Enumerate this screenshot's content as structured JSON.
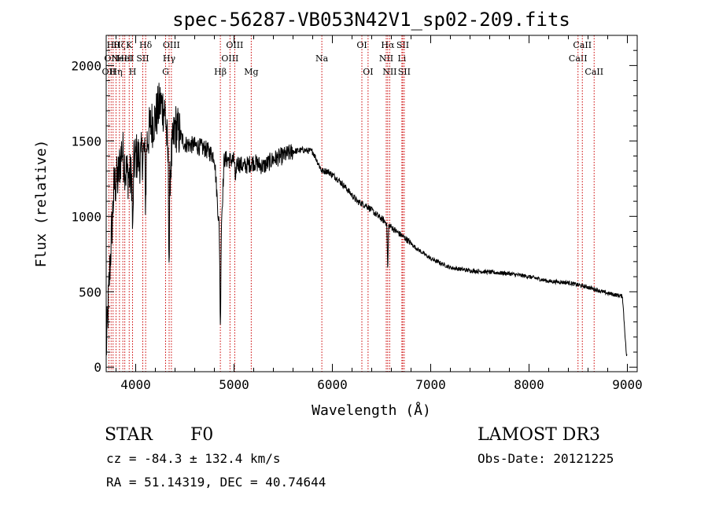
{
  "chart_data": {
    "type": "line",
    "title": "spec-56287-VB053N42V1_sp02-209.fits",
    "xlabel": "Wavelength (Å)",
    "ylabel": "Flux (relative)",
    "xlim": [
      3700,
      9100
    ],
    "ylim": [
      -30,
      2200
    ],
    "x_ticks": [
      4000,
      5000,
      6000,
      7000,
      8000,
      9000
    ],
    "x_tick_labels": [
      "4000",
      "5000",
      "6000",
      "7000",
      "8000",
      "9000"
    ],
    "y_ticks": [
      0,
      500,
      1000,
      1500,
      2000
    ],
    "y_tick_labels": [
      "0",
      "500",
      "1000",
      "1500",
      "2000"
    ],
    "spectrum_anchors": {
      "x": [
        3700,
        3740,
        3780,
        3820,
        3860,
        3900,
        3950,
        4000,
        4050,
        4100,
        4150,
        4200,
        4250,
        4300,
        4340,
        4400,
        4500,
        4600,
        4700,
        4800,
        4861,
        4900,
        5000,
        5100,
        5200,
        5300,
        5400,
        5500,
        5600,
        5700,
        5800,
        5893,
        5950,
        6050,
        6150,
        6250,
        6350,
        6450,
        6563,
        6650,
        6750,
        6850,
        7000,
        7200,
        7400,
        7600,
        7800,
        8000,
        8200,
        8400,
        8600,
        8800,
        8950,
        8990
      ],
      "y": [
        100,
        700,
        1200,
        1250,
        1450,
        1300,
        1250,
        1400,
        1380,
        1450,
        1600,
        1650,
        1750,
        1700,
        1250,
        1600,
        1480,
        1470,
        1450,
        1400,
        800,
        1380,
        1370,
        1330,
        1360,
        1330,
        1380,
        1400,
        1430,
        1440,
        1430,
        1300,
        1300,
        1250,
        1180,
        1100,
        1070,
        1010,
        950,
        900,
        850,
        790,
        720,
        660,
        640,
        630,
        620,
        600,
        570,
        560,
        530,
        490,
        470,
        80
      ]
    },
    "absorption_dips": [
      {
        "x": 3970,
        "depth": 450
      },
      {
        "x": 4101,
        "depth": 350
      },
      {
        "x": 4340,
        "depth": 550
      },
      {
        "x": 4861,
        "depth": 550
      },
      {
        "x": 5015,
        "depth": 180
      },
      {
        "x": 6563,
        "depth": 300
      }
    ],
    "line_markers": [
      {
        "x": 3727,
        "label": "OII",
        "row": 2
      },
      {
        "x": 3750,
        "label": "OII",
        "row": 1
      },
      {
        "x": 3770,
        "label": "Hθ",
        "row": 0
      },
      {
        "x": 3800,
        "label": "Hη",
        "row": 2
      },
      {
        "x": 3835,
        "label": "Hζ",
        "row": 0
      },
      {
        "x": 3869,
        "label": "NeIII",
        "row": 1
      },
      {
        "x": 3889,
        "label": "HeI",
        "row": 1
      },
      {
        "x": 3934,
        "label": "K",
        "row": 0
      },
      {
        "x": 3968,
        "label": "H",
        "row": 2
      },
      {
        "x": 4072,
        "label": "SII",
        "row": 1
      },
      {
        "x": 4101,
        "label": "Hδ",
        "row": 0
      },
      {
        "x": 4304,
        "label": "G",
        "row": 2
      },
      {
        "x": 4340,
        "label": "Hγ",
        "row": 1
      },
      {
        "x": 4363,
        "label": "OIII",
        "row": 0
      },
      {
        "x": 4861,
        "label": "Hβ",
        "row": 2
      },
      {
        "x": 4959,
        "label": "OIII",
        "row": 1
      },
      {
        "x": 5007,
        "label": "OIII",
        "row": 0
      },
      {
        "x": 5175,
        "label": "Mg",
        "row": 2
      },
      {
        "x": 5893,
        "label": "Na",
        "row": 1
      },
      {
        "x": 6300,
        "label": "OI",
        "row": 0
      },
      {
        "x": 6363,
        "label": "OI",
        "row": 2
      },
      {
        "x": 6548,
        "label": "NII",
        "row": 1
      },
      {
        "x": 6563,
        "label": "Hα",
        "row": 0
      },
      {
        "x": 6583,
        "label": "NII",
        "row": 2
      },
      {
        "x": 6707,
        "label": "Li",
        "row": 1
      },
      {
        "x": 6716,
        "label": "SII",
        "row": 0
      },
      {
        "x": 6731,
        "label": "SII",
        "row": 2
      },
      {
        "x": 8498,
        "label": "CaII",
        "row": 1
      },
      {
        "x": 8542,
        "label": "CaII",
        "row": 0
      },
      {
        "x": 8662,
        "label": "CaII",
        "row": 2
      }
    ],
    "colors": {
      "spectrum": "#000000",
      "markers": "#cc0000",
      "axes": "#000000"
    }
  },
  "info": {
    "class": "STAR",
    "subclass": "F0",
    "survey": "LAMOST DR3",
    "redshift": "cz = -84.3 ± 132.4 km/s",
    "obs_date": "Obs-Date: 20121225",
    "coords": "RA =  51.14319, DEC =  40.74644"
  }
}
